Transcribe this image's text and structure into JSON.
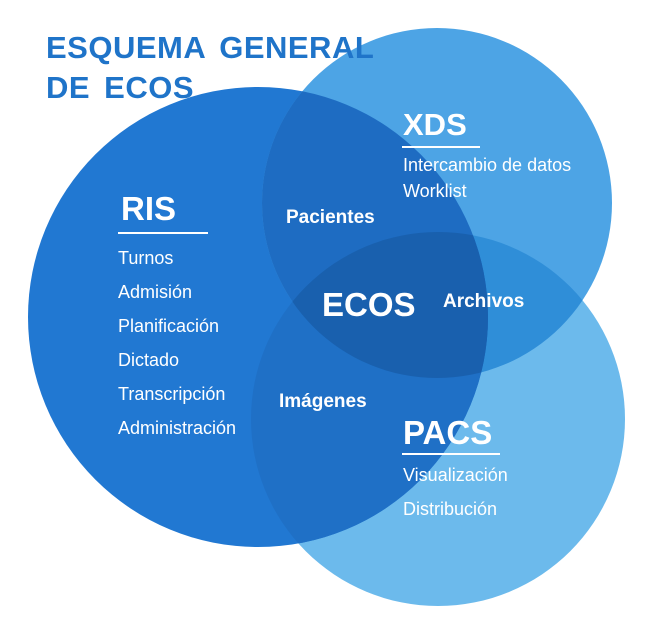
{
  "title": {
    "line1": "ESQUEMA GENERAL",
    "line2": "DE ECOS"
  },
  "ris": {
    "title": "RIS",
    "items": [
      "Turnos",
      "Admisión",
      "Planificación",
      "Dictado",
      "Transcripción",
      "Administración"
    ]
  },
  "xds": {
    "title": "XDS",
    "items": [
      "Intercambio de datos",
      "Worklist"
    ]
  },
  "pacs": {
    "title": "PACS",
    "items": [
      "Visualización",
      "Distribución"
    ]
  },
  "overlaps": {
    "ris_xds": "Pacientes",
    "xds_pacs": "Archivos",
    "ris_pacs": "Imágenes",
    "center": "ECOS"
  },
  "colors": {
    "title": "#1f74c9",
    "ris": "#2178d2",
    "xds": "#4da4e5",
    "pacs": "#6cbaec",
    "ris_xds": "#1e6cc2",
    "xds_pacs": "#2f8ed8",
    "ris_pacs": "#1f70c6",
    "center": "#1960ae"
  }
}
